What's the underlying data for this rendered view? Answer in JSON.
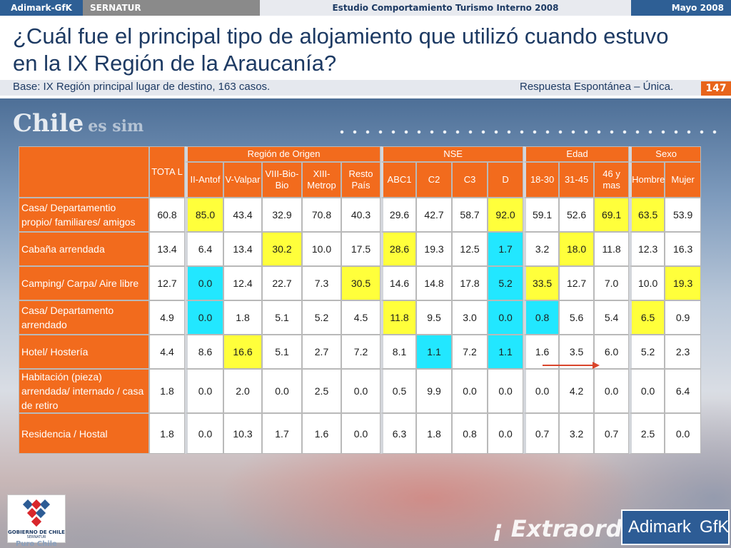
{
  "topbar": {
    "brand": "Adimark-GfK",
    "client": "SERNATUR",
    "study": "Estudio Comportamiento Turismo Interno 2008",
    "date": "Mayo 2008"
  },
  "header": {
    "title": "¿Cuál fue el principal tipo de alojamiento que utilizó cuando estuvo en la IX Región de la Araucanía?",
    "base": "Base: IX Región principal lugar de destino, 163 casos.",
    "response_type": "Respuesta Espontánea – Única.",
    "page_number": "147"
  },
  "background": {
    "chile": "Chile",
    "chile_tail": "es sim",
    "extra": "¡ Extraord"
  },
  "table": {
    "total_label": "TOTA L",
    "groups": [
      {
        "label": "Región de Origen",
        "columns": [
          "II-Antof",
          "V-Valpar",
          "VIII-Bio-Bio",
          "XIII-Metrop",
          "Resto País"
        ]
      },
      {
        "label": "NSE",
        "columns": [
          "ABC1",
          "C2",
          "C3",
          "D"
        ]
      },
      {
        "label": "Edad",
        "columns": [
          "18-30",
          "31-45",
          "46 y mas"
        ]
      },
      {
        "label": "Sexo",
        "columns": [
          "Hombre",
          "Mujer"
        ]
      }
    ],
    "rows": [
      {
        "label": "Casa/ Departamentio propio/ familiares/ amigos",
        "values": [
          "60.8",
          "85.0",
          "43.4",
          "32.9",
          "70.8",
          "40.3",
          "29.6",
          "42.7",
          "58.7",
          "92.0",
          "59.1",
          "52.6",
          "69.1",
          "63.5",
          "53.9"
        ],
        "highlights": [
          "",
          "y",
          "",
          "",
          "",
          "",
          "",
          "",
          "",
          "y",
          "",
          "",
          "y",
          "y",
          ""
        ]
      },
      {
        "label": "Cabaña arrendada",
        "values": [
          "13.4",
          "6.4",
          "13.4",
          "30.2",
          "10.0",
          "17.5",
          "28.6",
          "19.3",
          "12.5",
          "1.7",
          "3.2",
          "18.0",
          "11.8",
          "12.3",
          "16.3"
        ],
        "highlights": [
          "",
          "",
          "",
          "y",
          "",
          "",
          "y",
          "",
          "",
          "c",
          "",
          "y",
          "",
          "",
          ""
        ]
      },
      {
        "label": "Camping/ Carpa/ Aire libre",
        "values": [
          "12.7",
          "0.0",
          "12.4",
          "22.7",
          "7.3",
          "30.5",
          "14.6",
          "14.8",
          "17.8",
          "5.2",
          "33.5",
          "12.7",
          "7.0",
          "10.0",
          "19.3"
        ],
        "highlights": [
          "",
          "c",
          "",
          "",
          "",
          "y",
          "",
          "",
          "",
          "c",
          "y",
          "",
          "",
          "",
          "y"
        ]
      },
      {
        "label": "Casa/ Departamento arrendado",
        "values": [
          "4.9",
          "0.0",
          "1.8",
          "5.1",
          "5.2",
          "4.5",
          "11.8",
          "9.5",
          "3.0",
          "0.0",
          "0.8",
          "5.6",
          "5.4",
          "6.5",
          "0.9"
        ],
        "highlights": [
          "",
          "c",
          "",
          "",
          "",
          "",
          "y",
          "",
          "",
          "c",
          "c",
          "",
          "",
          "y",
          ""
        ]
      },
      {
        "label": "Hotel/ Hostería",
        "values": [
          "4.4",
          "8.6",
          "16.6",
          "5.1",
          "2.7",
          "7.2",
          "8.1",
          "1.1",
          "7.2",
          "1.1",
          "1.6",
          "3.5",
          "6.0",
          "5.2",
          "2.3"
        ],
        "highlights": [
          "",
          "",
          "y",
          "",
          "",
          "",
          "",
          "c",
          "",
          "c",
          "",
          "",
          "",
          "",
          ""
        ]
      },
      {
        "label": "Habitación (pieza) arrendada/ internado / casa de retiro",
        "values": [
          "1.8",
          "0.0",
          "2.0",
          "0.0",
          "2.5",
          "0.0",
          "0.5",
          "9.9",
          "0.0",
          "0.0",
          "0.0",
          "4.2",
          "0.0",
          "0.0",
          "6.4"
        ],
        "highlights": [
          "",
          "",
          "",
          "",
          "",
          "",
          "",
          "",
          "",
          "",
          "",
          "",
          "",
          "",
          ""
        ]
      },
      {
        "label": "Residencia / Hostal",
        "values": [
          "1.8",
          "0.0",
          "10.3",
          "1.7",
          "1.6",
          "0.0",
          "6.3",
          "1.8",
          "0.8",
          "0.0",
          "0.7",
          "3.2",
          "0.7",
          "2.5",
          "0.0"
        ],
        "highlights": [
          "",
          "",
          "",
          "",
          "",
          "",
          "",
          "",
          "",
          "",
          "",
          "",
          "",
          "",
          ""
        ]
      }
    ]
  },
  "footer": {
    "gobierno": "GOBIERNO DE CHILE",
    "gobierno_sub": "SERNATUR",
    "puro_chile": "Puro Chile",
    "logo_left": "Adimark",
    "logo_right": "GfK"
  },
  "colors": {
    "orange": "#f26b1d",
    "highlight_yellow": "#ffff3b",
    "highlight_cyan": "#22e7ff",
    "navy": "#1d3a63"
  }
}
